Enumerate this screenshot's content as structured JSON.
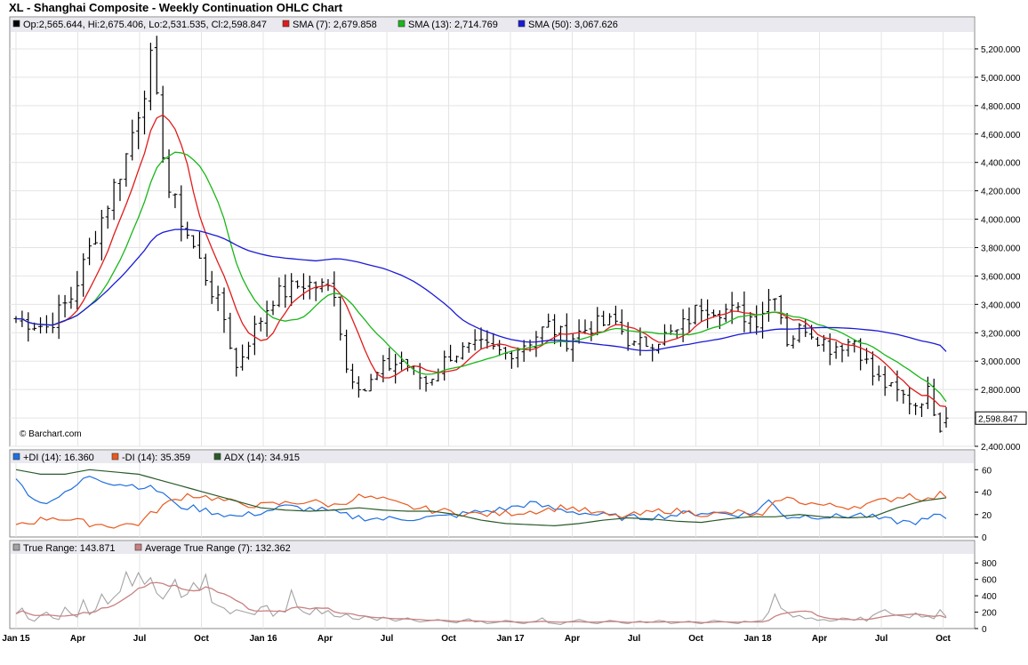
{
  "title": "XL - Shanghai Composite - Weekly Continuation OHLC Chart",
  "watermark": "© Barchart.com",
  "legends": {
    "price": [
      {
        "label": "Op:2,565.644, Hi:2,675.406, Lo:2,531.535, Cl:2,598.847",
        "color": "#000000"
      },
      {
        "label": "SMA (7): 2,679.858",
        "color": "#e01b1b"
      },
      {
        "label": "SMA (13): 2,714.769",
        "color": "#19b719"
      },
      {
        "label": "SMA (50): 3,067.626",
        "color": "#1a1ad6"
      }
    ],
    "dmi": [
      {
        "label": "+DI (14): 16.360",
        "color": "#1f6fe0"
      },
      {
        "label": "-DI (14): 35.359",
        "color": "#e85a1f"
      },
      {
        "label": "ADX (14): 34.915",
        "color": "#2a5a2a"
      }
    ],
    "tr": [
      {
        "label": "True Range: 143.871",
        "color": "#a3a3a3"
      },
      {
        "label": "Average True Range (7): 132.362",
        "color": "#c98080"
      }
    ]
  },
  "last_price_label": "2,598.847",
  "chart_data": [
    {
      "type": "ohlc",
      "title": "XL - Shanghai Composite - Weekly Continuation OHLC Chart",
      "ylim": [
        2400,
        5300
      ],
      "y_ticks": [
        "2,400.000",
        "2,600.000",
        "2,800.000",
        "3,000.000",
        "3,200.000",
        "3,400.000",
        "3,600.000",
        "3,800.000",
        "4,000.000",
        "4,200.000",
        "4,400.000",
        "4,600.000",
        "4,800.000",
        "5,000.000",
        "5,200.000"
      ],
      "x_ticks": [
        "Jan 15",
        "Apr",
        "Jul",
        "Oct",
        "Jan 16",
        "Apr",
        "Jul",
        "Oct",
        "Jan 17",
        "Apr",
        "Jul",
        "Oct",
        "Jan 18",
        "Apr",
        "Jul",
        "Oct"
      ],
      "close_anchors": [
        {
          "week": 0,
          "close": 3300
        },
        {
          "week": 5,
          "close": 3240
        },
        {
          "week": 9,
          "close": 3450
        },
        {
          "week": 13,
          "close": 3900
        },
        {
          "week": 18,
          "close": 4450
        },
        {
          "week": 22,
          "close": 5100
        },
        {
          "week": 25,
          "close": 4200
        },
        {
          "week": 29,
          "close": 3800
        },
        {
          "week": 34,
          "close": 3300
        },
        {
          "week": 36,
          "close": 2950
        },
        {
          "week": 38,
          "close": 3150
        },
        {
          "week": 42,
          "close": 3450
        },
        {
          "week": 47,
          "close": 3550
        },
        {
          "week": 52,
          "close": 3500
        },
        {
          "week": 54,
          "close": 2950
        },
        {
          "week": 57,
          "close": 2800
        },
        {
          "week": 60,
          "close": 2950
        },
        {
          "week": 63,
          "close": 3000
        },
        {
          "week": 67,
          "close": 2850
        },
        {
          "week": 71,
          "close": 3050
        },
        {
          "week": 76,
          "close": 3100
        },
        {
          "week": 80,
          "close": 3050
        },
        {
          "week": 84,
          "close": 3150
        },
        {
          "week": 87,
          "close": 3250
        },
        {
          "week": 90,
          "close": 3150
        },
        {
          "week": 94,
          "close": 3250
        },
        {
          "week": 98,
          "close": 3270
        },
        {
          "week": 101,
          "close": 3100
        },
        {
          "week": 104,
          "close": 3150
        },
        {
          "week": 108,
          "close": 3200
        },
        {
          "week": 112,
          "close": 3400
        },
        {
          "week": 117,
          "close": 3350
        },
        {
          "week": 121,
          "close": 3300
        },
        {
          "week": 124,
          "close": 3500
        },
        {
          "week": 126,
          "close": 3150
        },
        {
          "week": 129,
          "close": 3250
        },
        {
          "week": 133,
          "close": 3100
        },
        {
          "week": 137,
          "close": 3150
        },
        {
          "week": 140,
          "close": 2900
        },
        {
          "week": 143,
          "close": 2800
        },
        {
          "week": 147,
          "close": 2700
        },
        {
          "week": 149,
          "close": 2780
        },
        {
          "week": 151,
          "close": 2550
        },
        {
          "week": 152,
          "close": 2599
        }
      ],
      "last_bar": {
        "open": 2565.644,
        "high": 2675.406,
        "low": 2531.535,
        "close": 2598.847
      },
      "series": [
        {
          "name": "SMA (7)",
          "period": 7,
          "last": 2679.858
        },
        {
          "name": "SMA (13)",
          "period": 13,
          "last": 2714.769
        },
        {
          "name": "SMA (50)",
          "period": 50,
          "last": 3067.626
        }
      ]
    },
    {
      "type": "line",
      "ylim": [
        0,
        65
      ],
      "y_ticks": [
        "0",
        "20",
        "40",
        "60"
      ],
      "series": [
        {
          "name": "+DI (14)",
          "last": 16.36,
          "anchors": [
            {
              "week": 0,
              "value": 50
            },
            {
              "week": 4,
              "value": 30
            },
            {
              "week": 8,
              "value": 38
            },
            {
              "week": 12,
              "value": 55
            },
            {
              "week": 16,
              "value": 48
            },
            {
              "week": 21,
              "value": 45
            },
            {
              "week": 24,
              "value": 40
            },
            {
              "week": 26,
              "value": 28
            },
            {
              "week": 30,
              "value": 25
            },
            {
              "week": 36,
              "value": 18
            },
            {
              "week": 40,
              "value": 22
            },
            {
              "week": 44,
              "value": 27
            },
            {
              "week": 50,
              "value": 24
            },
            {
              "week": 55,
              "value": 18
            },
            {
              "week": 60,
              "value": 16
            },
            {
              "week": 66,
              "value": 17
            },
            {
              "week": 70,
              "value": 18
            },
            {
              "week": 75,
              "value": 22
            },
            {
              "week": 80,
              "value": 25
            },
            {
              "week": 84,
              "value": 30
            },
            {
              "week": 88,
              "value": 25
            },
            {
              "week": 92,
              "value": 22
            },
            {
              "week": 96,
              "value": 19
            },
            {
              "week": 100,
              "value": 17
            },
            {
              "week": 104,
              "value": 18
            },
            {
              "week": 108,
              "value": 20
            },
            {
              "week": 112,
              "value": 22
            },
            {
              "week": 116,
              "value": 21
            },
            {
              "week": 120,
              "value": 20
            },
            {
              "week": 123,
              "value": 32
            },
            {
              "week": 126,
              "value": 18
            },
            {
              "week": 130,
              "value": 19
            },
            {
              "week": 134,
              "value": 18
            },
            {
              "week": 138,
              "value": 20
            },
            {
              "week": 142,
              "value": 15
            },
            {
              "week": 146,
              "value": 13
            },
            {
              "week": 149,
              "value": 15
            },
            {
              "week": 150,
              "value": 19
            },
            {
              "week": 152,
              "value": 16.36
            }
          ]
        },
        {
          "name": "-DI (14)",
          "last": 35.359,
          "anchors": [
            {
              "week": 0,
              "value": 12
            },
            {
              "week": 3,
              "value": 14
            },
            {
              "week": 6,
              "value": 18
            },
            {
              "week": 12,
              "value": 12
            },
            {
              "week": 16,
              "value": 10
            },
            {
              "week": 20,
              "value": 12
            },
            {
              "week": 24,
              "value": 28
            },
            {
              "week": 28,
              "value": 38
            },
            {
              "week": 32,
              "value": 35
            },
            {
              "week": 36,
              "value": 30
            },
            {
              "week": 40,
              "value": 28
            },
            {
              "week": 44,
              "value": 30
            },
            {
              "week": 48,
              "value": 32
            },
            {
              "week": 52,
              "value": 28
            },
            {
              "week": 56,
              "value": 36
            },
            {
              "week": 60,
              "value": 33
            },
            {
              "week": 64,
              "value": 27
            },
            {
              "week": 68,
              "value": 24
            },
            {
              "week": 72,
              "value": 22
            },
            {
              "week": 76,
              "value": 20
            },
            {
              "week": 80,
              "value": 21
            },
            {
              "week": 86,
              "value": 24
            },
            {
              "week": 90,
              "value": 27
            },
            {
              "week": 94,
              "value": 22
            },
            {
              "week": 98,
              "value": 18
            },
            {
              "week": 102,
              "value": 20
            },
            {
              "week": 106,
              "value": 24
            },
            {
              "week": 110,
              "value": 22
            },
            {
              "week": 114,
              "value": 20
            },
            {
              "week": 118,
              "value": 22
            },
            {
              "week": 122,
              "value": 18
            },
            {
              "week": 125,
              "value": 35
            },
            {
              "week": 128,
              "value": 32
            },
            {
              "week": 132,
              "value": 28
            },
            {
              "week": 136,
              "value": 27
            },
            {
              "week": 140,
              "value": 30
            },
            {
              "week": 143,
              "value": 34
            },
            {
              "week": 146,
              "value": 38
            },
            {
              "week": 149,
              "value": 33
            },
            {
              "week": 151,
              "value": 38
            },
            {
              "week": 152,
              "value": 35.359
            }
          ]
        },
        {
          "name": "ADX (14)",
          "last": 34.915,
          "anchors": [
            {
              "week": 0,
              "value": 60
            },
            {
              "week": 4,
              "value": 56
            },
            {
              "week": 8,
              "value": 56
            },
            {
              "week": 12,
              "value": 60
            },
            {
              "week": 16,
              "value": 58
            },
            {
              "week": 20,
              "value": 56
            },
            {
              "week": 24,
              "value": 50
            },
            {
              "week": 28,
              "value": 44
            },
            {
              "week": 32,
              "value": 38
            },
            {
              "week": 36,
              "value": 32
            },
            {
              "week": 40,
              "value": 26
            },
            {
              "week": 44,
              "value": 24
            },
            {
              "week": 48,
              "value": 23
            },
            {
              "week": 52,
              "value": 24
            },
            {
              "week": 56,
              "value": 26
            },
            {
              "week": 60,
              "value": 24
            },
            {
              "week": 64,
              "value": 23
            },
            {
              "week": 68,
              "value": 23
            },
            {
              "week": 72,
              "value": 20
            },
            {
              "week": 76,
              "value": 15
            },
            {
              "week": 80,
              "value": 12
            },
            {
              "week": 84,
              "value": 11
            },
            {
              "week": 88,
              "value": 10
            },
            {
              "week": 92,
              "value": 12
            },
            {
              "week": 96,
              "value": 15
            },
            {
              "week": 100,
              "value": 17
            },
            {
              "week": 104,
              "value": 16
            },
            {
              "week": 108,
              "value": 14
            },
            {
              "week": 112,
              "value": 13
            },
            {
              "week": 116,
              "value": 16
            },
            {
              "week": 120,
              "value": 18
            },
            {
              "week": 124,
              "value": 18
            },
            {
              "week": 128,
              "value": 20
            },
            {
              "week": 132,
              "value": 18
            },
            {
              "week": 136,
              "value": 17
            },
            {
              "week": 140,
              "value": 18
            },
            {
              "week": 144,
              "value": 26
            },
            {
              "week": 148,
              "value": 32
            },
            {
              "week": 152,
              "value": 34.915
            }
          ]
        }
      ]
    },
    {
      "type": "line",
      "ylim": [
        0,
        900
      ],
      "y_ticks": [
        "0",
        "200",
        "400",
        "600",
        "800"
      ],
      "series": [
        {
          "name": "True Range",
          "last": 143.871,
          "values": [
            180,
            250,
            120,
            90,
            160,
            200,
            130,
            110,
            260,
            180,
            140,
            350,
            170,
            230,
            420,
            300,
            380,
            450,
            690,
            520,
            680,
            540,
            620,
            430,
            360,
            470,
            600,
            380,
            420,
            560,
            470,
            660,
            320,
            280,
            250,
            180,
            230,
            210,
            190,
            170,
            260,
            280,
            150,
            220,
            200,
            470,
            260,
            200,
            170,
            250,
            180,
            220,
            150,
            140,
            180,
            120,
            110,
            150,
            130,
            100,
            140,
            120,
            90,
            110,
            130,
            100,
            80,
            90,
            100,
            110,
            90,
            80,
            70,
            100,
            120,
            80,
            90,
            60,
            70,
            80,
            100,
            90,
            70,
            60,
            80,
            90,
            130,
            70,
            60,
            50,
            80,
            90,
            110,
            90,
            70,
            60,
            80,
            100,
            90,
            70,
            60,
            80,
            90,
            70,
            80,
            100,
            90,
            60,
            70,
            80,
            90,
            70,
            60,
            80,
            100,
            90,
            80,
            70,
            60,
            90,
            80,
            90,
            100,
            200,
            420,
            250,
            200,
            140,
            160,
            120,
            130,
            100,
            110,
            90,
            100,
            130,
            120,
            100,
            140,
            90,
            160,
            200,
            230,
            180,
            160,
            150,
            130,
            190,
            140,
            150,
            120,
            230,
            143.871
          ]
        },
        {
          "name": "Average True Range (7)",
          "last": 132.362
        }
      ]
    }
  ]
}
